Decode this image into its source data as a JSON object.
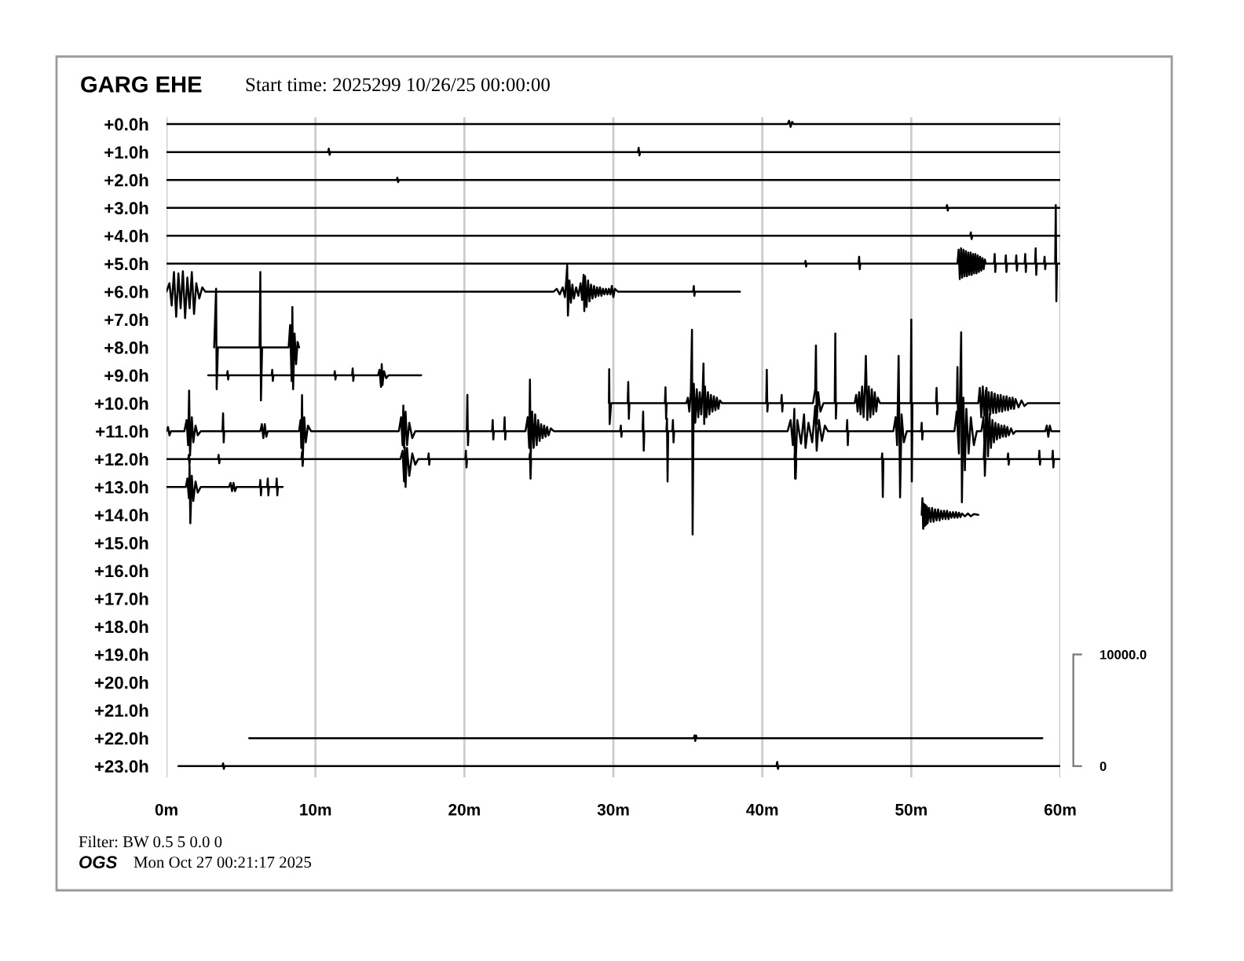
{
  "chart_data": {
    "type": "line",
    "title": "GARG EHE",
    "subtitle": "Start time: 2025299 10/26/25 00:00:00",
    "annotations": [
      "Filter: BW 0.5 5 0.0 0",
      "OGS",
      "Mon Oct 27 00:21:17 2025"
    ],
    "xlim": [
      0,
      60
    ],
    "xticks": [
      {
        "value": 0,
        "label": "0m"
      },
      {
        "value": 10,
        "label": "10m"
      },
      {
        "value": 20,
        "label": "20m"
      },
      {
        "value": 30,
        "label": "30m"
      },
      {
        "value": 40,
        "label": "40m"
      },
      {
        "value": 50,
        "label": "50m"
      },
      {
        "value": 60,
        "label": "60m"
      }
    ],
    "ylim": [
      23.4,
      -0.25
    ],
    "yticks": [
      {
        "value": 0,
        "label": "+0.0h"
      },
      {
        "value": 1,
        "label": "+1.0h"
      },
      {
        "value": 2,
        "label": "+2.0h"
      },
      {
        "value": 3,
        "label": "+3.0h"
      },
      {
        "value": 4,
        "label": "+4.0h"
      },
      {
        "value": 5,
        "label": "+5.0h"
      },
      {
        "value": 6,
        "label": "+6.0h"
      },
      {
        "value": 7,
        "label": "+7.0h"
      },
      {
        "value": 8,
        "label": "+8.0h"
      },
      {
        "value": 9,
        "label": "+9.0h"
      },
      {
        "value": 10,
        "label": "+10.0h"
      },
      {
        "value": 11,
        "label": "+11.0h"
      },
      {
        "value": 12,
        "label": "+12.0h"
      },
      {
        "value": 13,
        "label": "+13.0h"
      },
      {
        "value": 14,
        "label": "+14.0h"
      },
      {
        "value": 15,
        "label": "+15.0h"
      },
      {
        "value": 16,
        "label": "+16.0h"
      },
      {
        "value": 17,
        "label": "+17.0h"
      },
      {
        "value": 18,
        "label": "+18.0h"
      },
      {
        "value": 19,
        "label": "+19.0h"
      },
      {
        "value": 20,
        "label": "+20.0h"
      },
      {
        "value": 21,
        "label": "+21.0h"
      },
      {
        "value": 22,
        "label": "+22.0h"
      },
      {
        "value": 23,
        "label": "+23.0h"
      }
    ],
    "y2lim": [
      -1000,
      58125
    ],
    "y2ticks": [
      0,
      {
        "value": 10000,
        "label": "10000.0"
      }
    ],
    "grid": "x",
    "series": [
      {
        "color": "#000000",
        "x": [
          0,
          41.7,
          41.8,
          41.9,
          42.0,
          42.1,
          60
        ],
        "values": [
          0,
          0,
          -0.12,
          0.1,
          -0.08,
          0,
          0
        ]
      },
      {
        "color": "#000000",
        "x": [
          0,
          10.85,
          10.9,
          10.95,
          11.0,
          31.65,
          31.7,
          31.75,
          31.8,
          60
        ],
        "values": [
          1,
          1,
          0.88,
          1.1,
          1,
          1,
          0.85,
          1.12,
          1,
          1
        ]
      },
      {
        "color": "#000000",
        "x": [
          0,
          15.45,
          15.5,
          15.55,
          15.6,
          60
        ],
        "values": [
          2,
          2,
          1.92,
          2.08,
          2,
          2
        ]
      },
      {
        "color": "#000000",
        "x": [
          0,
          52.35,
          52.4,
          52.45,
          52.5,
          60
        ],
        "values": [
          3,
          3,
          2.9,
          3.1,
          3,
          3
        ]
      },
      {
        "color": "#000000",
        "x": [
          0,
          53.95,
          54.0,
          54.05,
          54.1,
          60
        ],
        "values": [
          4,
          4,
          3.88,
          4.12,
          4,
          4
        ]
      },
      {
        "color": "#000000",
        "x": [
          0,
          42.86,
          42.9,
          42.94,
          42.98,
          46.46,
          46.5,
          46.54,
          46.58,
          53.1,
          53.18,
          53.26,
          53.34,
          53.42,
          53.5,
          53.58,
          53.66,
          53.74,
          53.82,
          53.9,
          53.98,
          54.06,
          54.14,
          54.22,
          54.3,
          54.38,
          54.46,
          54.54,
          54.62,
          54.7,
          54.78,
          54.86,
          54.94,
          55.0,
          55.56,
          55.6,
          55.64,
          55.68,
          56.31,
          56.35,
          56.39,
          56.43,
          57.01,
          57.05,
          57.09,
          57.13,
          57.61,
          57.65,
          57.69,
          57.73,
          58.31,
          58.35,
          58.39,
          58.43,
          58.91,
          58.95,
          58.99,
          59.03,
          59.66,
          59.7,
          59.74,
          59.78,
          60
        ],
        "values": [
          5,
          5,
          4.9,
          5.1,
          5,
          5,
          4.75,
          5.2,
          5,
          5,
          4.5,
          5.55,
          4.45,
          5.5,
          4.5,
          5.45,
          4.55,
          5.45,
          4.6,
          5.4,
          4.6,
          5.4,
          4.65,
          5.35,
          4.65,
          5.35,
          4.7,
          5.3,
          4.75,
          5.25,
          4.8,
          5.2,
          4.85,
          5,
          5,
          4.65,
          5.3,
          5,
          5,
          4.7,
          5.3,
          5,
          5,
          4.7,
          5.25,
          5,
          5,
          4.65,
          5.3,
          5,
          5,
          4.45,
          5.4,
          5,
          5,
          4.75,
          5.2,
          5,
          5,
          2.9,
          6.35,
          5,
          5
        ]
      },
      {
        "color": "#000000",
        "x": [
          0,
          0.2,
          0.35,
          0.5,
          0.65,
          0.8,
          0.95,
          1.1,
          1.25,
          1.4,
          1.55,
          1.7,
          1.85,
          2.0,
          2.2,
          2.4,
          2.6,
          26.0,
          26.2,
          26.4,
          26.6,
          26.75,
          26.85,
          26.9,
          26.95,
          27.05,
          27.15,
          27.25,
          27.35,
          27.5,
          27.65,
          27.8,
          27.9,
          28.0,
          28.05,
          28.1,
          28.2,
          28.3,
          28.4,
          28.5,
          28.6,
          28.7,
          28.8,
          28.9,
          29.0,
          29.1,
          29.2,
          29.3,
          29.4,
          29.5,
          29.6,
          29.7,
          29.8,
          29.9,
          30.0,
          30.1,
          30.3,
          35.36,
          35.4,
          35.44,
          35.48,
          38.5
        ],
        "values": [
          6,
          5.7,
          6.5,
          5.3,
          6.9,
          5.35,
          6.6,
          5.27,
          6.95,
          5.5,
          6.6,
          5.3,
          6.8,
          5.7,
          6.25,
          5.85,
          6,
          6,
          5.9,
          6.1,
          5.85,
          6.2,
          5.5,
          5.06,
          6.86,
          5.6,
          6.4,
          5.75,
          6.25,
          5.85,
          6.15,
          5.7,
          6.3,
          5.4,
          6.7,
          5.45,
          6.55,
          5.6,
          6.35,
          5.75,
          6.25,
          5.8,
          6.2,
          5.85,
          6.15,
          5.85,
          6.15,
          5.9,
          6.1,
          5.9,
          6.1,
          5.9,
          6.1,
          5.8,
          6.2,
          5.9,
          6,
          6,
          5.8,
          6.15,
          6,
          6
        ]
      },
      {
        "color": "#000000",
        "x": [
          3.2,
          3.33,
          3.37,
          3.45,
          6.25,
          6.3,
          6.34,
          6.42,
          8.2,
          8.3,
          8.4,
          8.45,
          8.5,
          8.6,
          8.7,
          8.8,
          8.9
        ],
        "values": [
          8,
          5.9,
          9.5,
          8,
          8,
          5.3,
          9.9,
          8,
          8,
          7.2,
          9.2,
          6.55,
          9.5,
          7.5,
          8.6,
          7.8,
          8
        ]
      },
      {
        "color": "#000000",
        "x": [
          2.8,
          4.06,
          4.1,
          4.14,
          4.18,
          7.06,
          7.1,
          7.14,
          7.18,
          11.26,
          11.3,
          11.34,
          11.38,
          12.46,
          12.5,
          12.54,
          12.58,
          14.2,
          14.3,
          14.4,
          14.45,
          14.5,
          14.6,
          14.75,
          14.9,
          17.1
        ],
        "values": [
          9,
          9,
          8.85,
          9.15,
          9,
          9,
          8.8,
          9.2,
          9,
          9,
          8.85,
          9.15,
          9,
          9,
          8.75,
          9.2,
          9,
          9,
          8.8,
          9.42,
          8.6,
          9.35,
          8.85,
          9.1,
          9,
          9
        ]
      },
      {
        "color": "#000000",
        "x": [
          29.7,
          29.72,
          29.75,
          29.85,
          30.96,
          31.0,
          31.04,
          31.08,
          33.46,
          33.5,
          33.54,
          33.58,
          34.9,
          35.0,
          35.1,
          35.2,
          35.28,
          35.32,
          35.4,
          35.5,
          35.6,
          35.7,
          35.8,
          35.9,
          36.0,
          36.05,
          36.1,
          36.15,
          36.25,
          36.35,
          36.45,
          36.55,
          36.65,
          36.75,
          36.85,
          36.95,
          37.05,
          37.15,
          37.3,
          40.26,
          40.3,
          40.34,
          40.38,
          41.26,
          41.3,
          41.34,
          41.38,
          43.4,
          43.55,
          43.6,
          43.65,
          43.75,
          43.9,
          44.1,
          44.86,
          44.9,
          44.94,
          44.98,
          46.2,
          46.3,
          46.4,
          46.5,
          46.6,
          46.7,
          46.8,
          46.9,
          46.95,
          47.05,
          47.15,
          47.25,
          47.35,
          47.45,
          47.55,
          47.65,
          47.75,
          47.9,
          49.96,
          50.0,
          50.04,
          50.08,
          51.66,
          51.7,
          51.74,
          51.78,
          53.06,
          53.1,
          53.14,
          53.18,
          54.5,
          54.6,
          54.7,
          54.8,
          54.9,
          55.0,
          55.1,
          55.2,
          55.3,
          55.4,
          55.5,
          55.6,
          55.7,
          55.8,
          55.9,
          56.0,
          56.1,
          56.2,
          56.3,
          56.4,
          56.5,
          56.6,
          56.7,
          56.8,
          56.9,
          57.0,
          57.2,
          57.4,
          57.6,
          57.8,
          60
        ],
        "values": [
          10,
          8.78,
          10.75,
          10,
          10,
          9.24,
          10.56,
          10,
          10,
          9.43,
          10.56,
          10,
          10,
          9.8,
          10.3,
          9.6,
          7.37,
          14.7,
          9.3,
          10.7,
          9.5,
          10.5,
          9.6,
          10.4,
          9.5,
          8.58,
          10.74,
          9.4,
          10.5,
          9.6,
          10.4,
          9.7,
          10.3,
          9.75,
          10.25,
          9.8,
          10.2,
          9.9,
          10,
          10,
          8.8,
          10.3,
          10,
          10,
          9.7,
          10.3,
          10,
          10,
          9.5,
          7.93,
          10.74,
          9.6,
          10.3,
          10,
          10,
          7.5,
          10.55,
          10,
          10,
          9.7,
          10.3,
          9.6,
          10.4,
          9.4,
          10.5,
          9.3,
          8.3,
          10.6,
          9.4,
          10.5,
          9.5,
          10.4,
          9.6,
          10.3,
          9.8,
          10,
          10,
          7.0,
          12.8,
          10,
          10,
          9.45,
          10.4,
          10,
          10,
          8.7,
          10.7,
          10,
          10,
          9.45,
          10.5,
          9.4,
          10.45,
          9.55,
          10.4,
          9.6,
          10.4,
          9.6,
          10.35,
          9.65,
          10.35,
          9.7,
          10.3,
          9.7,
          10.3,
          9.75,
          10.25,
          9.75,
          10.25,
          9.8,
          10.2,
          9.8,
          10.2,
          9.85,
          10.15,
          9.9,
          10.1,
          10,
          10
        ]
      },
      {
        "color": "#000000",
        "x": [
          0,
          0.1,
          0.2,
          0.3,
          1.2,
          1.35,
          1.45,
          1.52,
          1.58,
          1.7,
          1.8,
          1.95,
          2.1,
          2.3,
          3.76,
          3.8,
          3.84,
          3.88,
          6.3,
          6.4,
          6.5,
          6.6,
          6.7,
          6.8,
          8.9,
          9.0,
          9.05,
          9.1,
          9.15,
          9.25,
          9.35,
          9.5,
          9.7,
          15.6,
          15.75,
          15.85,
          15.9,
          15.95,
          16.05,
          16.15,
          16.3,
          16.5,
          16.7,
          20.16,
          20.2,
          20.24,
          20.28,
          21.86,
          21.9,
          21.94,
          21.98,
          22.66,
          22.7,
          22.74,
          22.78,
          24.1,
          24.25,
          24.35,
          24.4,
          24.45,
          24.55,
          24.65,
          24.75,
          24.85,
          24.95,
          25.05,
          25.15,
          25.25,
          25.35,
          25.45,
          25.55,
          25.65,
          25.8,
          26.0,
          30.46,
          30.5,
          30.54,
          30.58,
          31.96,
          32.0,
          32.04,
          32.08,
          33.56,
          33.6,
          33.64,
          33.68,
          33.96,
          34.0,
          34.04,
          34.08,
          41.7,
          41.9,
          42.05,
          42.15,
          42.2,
          42.35,
          42.6,
          42.8,
          42.9,
          43.1,
          43.35,
          43.55,
          43.65,
          43.8,
          44.0,
          44.2,
          44.4,
          45.66,
          45.7,
          45.74,
          45.78,
          48.8,
          48.95,
          49.05,
          49.15,
          49.25,
          49.35,
          49.5,
          49.7,
          50.66,
          50.7,
          50.74,
          50.78,
          52.9,
          53.05,
          53.2,
          53.35,
          53.4,
          53.5,
          53.6,
          53.7,
          53.85,
          54.0,
          54.2,
          54.4,
          54.7,
          54.85,
          54.95,
          55.05,
          55.15,
          55.25,
          55.35,
          55.45,
          55.55,
          55.65,
          55.75,
          55.85,
          55.95,
          56.05,
          56.15,
          56.25,
          56.35,
          56.45,
          56.55,
          56.7,
          56.85,
          57.0,
          59.0,
          59.1,
          59.2,
          59.3,
          59.4,
          60
        ],
        "values": [
          11,
          10.85,
          11.15,
          11,
          11,
          10.6,
          11.5,
          9.55,
          11.87,
          10.5,
          11.4,
          10.8,
          11.15,
          11,
          11,
          10.36,
          11.4,
          11,
          11,
          10.75,
          11.25,
          10.75,
          11.2,
          11,
          11,
          10.6,
          11.6,
          9.71,
          11.96,
          10.5,
          11.4,
          10.8,
          11,
          11,
          10.5,
          11.5,
          10.08,
          11.6,
          10.3,
          11.5,
          10.7,
          11.25,
          11,
          11,
          9.7,
          11.5,
          11,
          11,
          10.6,
          11.3,
          11,
          11,
          10.5,
          11.3,
          11,
          11,
          10.5,
          11.6,
          9.15,
          11.96,
          10.3,
          11.6,
          10.4,
          11.5,
          10.6,
          11.35,
          10.75,
          11.25,
          10.8,
          11.2,
          10.85,
          11.15,
          10.9,
          11,
          11,
          10.8,
          11.2,
          11,
          11,
          10.3,
          11.7,
          11,
          11,
          10.55,
          12.8,
          11,
          11,
          10.6,
          11.4,
          11,
          11,
          10.6,
          11.5,
          10.2,
          12.7,
          10.6,
          11.45,
          10.4,
          11.6,
          10.7,
          11.4,
          10.1,
          11.7,
          10.6,
          11.35,
          10.8,
          11,
          11,
          10.6,
          11.5,
          11,
          11,
          10.5,
          11.5,
          8.3,
          13.37,
          10.4,
          11.4,
          11,
          11,
          10.7,
          11.3,
          11,
          11,
          10.3,
          11.8,
          7.46,
          13.55,
          9.8,
          12.4,
          10.2,
          11.8,
          10.5,
          11.5,
          11,
          11,
          10.5,
          12.15,
          9.45,
          11.9,
          10.4,
          11.6,
          10.6,
          11.4,
          10.7,
          11.3,
          10.75,
          11.25,
          10.8,
          11.2,
          10.8,
          11.2,
          10.85,
          11.15,
          10.9,
          11.1,
          11,
          11,
          10.8,
          11.2,
          10.8,
          11,
          11
        ]
      },
      {
        "color": "#000000",
        "x": [
          0,
          1.46,
          1.5,
          1.54,
          1.58,
          3.46,
          3.5,
          3.54,
          3.58,
          9.06,
          9.1,
          9.14,
          9.18,
          15.7,
          15.85,
          15.95,
          16.0,
          16.05,
          16.15,
          16.3,
          16.5,
          16.7,
          16.9,
          17.56,
          17.6,
          17.64,
          17.68,
          20.06,
          20.1,
          20.14,
          20.18,
          24.36,
          24.4,
          24.44,
          24.48,
          42.16,
          42.2,
          42.24,
          42.28,
          48.01,
          48.05,
          48.09,
          48.13,
          54.86,
          54.9,
          54.94,
          54.98,
          56.46,
          56.5,
          56.54,
          56.58,
          58.56,
          58.6,
          58.64,
          58.68,
          59.46,
          59.5,
          59.54,
          59.58,
          60
        ],
        "values": [
          12,
          12,
          11.85,
          12.2,
          12,
          12,
          11.85,
          12.15,
          12,
          12,
          11.75,
          12.25,
          12,
          12,
          11.7,
          12.8,
          11.58,
          13.0,
          11.6,
          12.6,
          11.8,
          12.2,
          12,
          12,
          11.8,
          12.2,
          12,
          12,
          11.7,
          12.3,
          12,
          12,
          11.8,
          12.7,
          12,
          12,
          11.7,
          12.7,
          12,
          12,
          11.8,
          13.36,
          12,
          12,
          11.5,
          12.6,
          12,
          12,
          11.8,
          12.2,
          12,
          12,
          11.7,
          12.2,
          12,
          12,
          11.7,
          12.3,
          12,
          12
        ]
      },
      {
        "color": "#000000",
        "x": [
          0,
          1.3,
          1.4,
          1.5,
          1.55,
          1.6,
          1.7,
          1.8,
          1.95,
          2.1,
          2.3,
          4.2,
          4.3,
          4.4,
          4.5,
          4.6,
          4.7,
          6.26,
          6.3,
          6.34,
          6.38,
          6.76,
          6.8,
          6.84,
          6.88,
          7.36,
          7.4,
          7.44,
          7.48,
          7.8
        ],
        "values": [
          13,
          13,
          12.7,
          13.4,
          12.25,
          14.3,
          12.6,
          13.5,
          12.8,
          13.2,
          13,
          13,
          12.85,
          13.15,
          12.85,
          13.15,
          13,
          13,
          12.75,
          13.3,
          13,
          13,
          12.7,
          13.3,
          13,
          13,
          12.7,
          13.3,
          13,
          13
        ]
      },
      {
        "color": "#000000",
        "x": [
          50.7,
          50.75,
          50.8,
          50.85,
          50.9,
          50.95,
          51.0,
          51.05,
          51.1,
          51.2,
          51.3,
          51.4,
          51.5,
          51.6,
          51.7,
          51.8,
          51.9,
          52.0,
          52.1,
          52.2,
          52.3,
          52.4,
          52.5,
          52.6,
          52.7,
          52.8,
          52.9,
          53.0,
          53.1,
          53.2,
          53.3,
          53.4,
          53.6,
          53.8,
          54.0,
          54.2,
          54.5
        ],
        "values": [
          14,
          13.4,
          14.5,
          13.6,
          14.4,
          13.65,
          14.35,
          13.7,
          14.3,
          13.75,
          14.25,
          13.75,
          14.25,
          13.8,
          14.2,
          13.8,
          14.2,
          13.85,
          14.15,
          13.85,
          14.15,
          13.85,
          14.15,
          13.9,
          14.1,
          13.9,
          14.1,
          13.9,
          14.1,
          13.92,
          14.08,
          13.95,
          14.05,
          13.95,
          14.05,
          13.97,
          14
        ]
      },
      {
        "color": "#000000",
        "x": [
          5.55,
          35.4,
          35.45,
          35.5,
          35.55,
          35.6,
          58.8
        ],
        "values": [
          22,
          22,
          21.9,
          22.1,
          21.9,
          22,
          22
        ]
      },
      {
        "color": "#000000",
        "x": [
          0.8,
          3.75,
          3.8,
          3.85,
          3.9,
          40.95,
          41.0,
          41.05,
          41.1,
          60
        ],
        "values": [
          23,
          23,
          22.9,
          23.1,
          23,
          23,
          22.85,
          23.1,
          23,
          23
        ]
      }
    ]
  }
}
